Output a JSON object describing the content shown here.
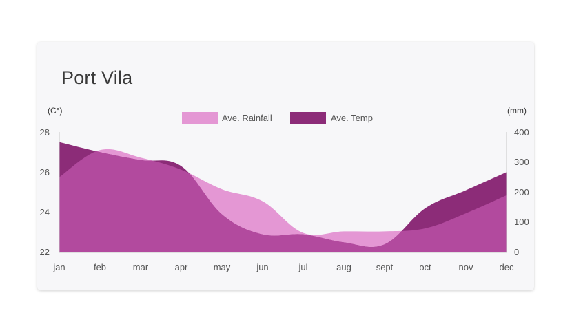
{
  "card_title": "Port Vila",
  "chart_data": {
    "type": "area",
    "title": "Port Vila",
    "categories": [
      "jan",
      "feb",
      "mar",
      "apr",
      "may",
      "jun",
      "jul",
      "aug",
      "sept",
      "oct",
      "nov",
      "dec"
    ],
    "series": [
      {
        "name": "Ave. Rainfall",
        "axis": "right",
        "color": "#e497d4",
        "values": [
          250,
          340,
          315,
          275,
          210,
          170,
          65,
          70,
          70,
          80,
          130,
          190
        ]
      },
      {
        "name": "Ave. Temp",
        "axis": "left",
        "color": "#8c2c78",
        "values": [
          27.5,
          27.0,
          26.6,
          26.3,
          23.9,
          22.9,
          22.9,
          22.5,
          22.4,
          24.2,
          25.1,
          26.0
        ]
      }
    ],
    "left_axis": {
      "unit_label": "(C°)",
      "ylim": [
        22,
        28
      ],
      "ticks": [
        "28",
        "26",
        "24",
        "22"
      ]
    },
    "right_axis": {
      "unit_label": "(mm)",
      "ylim": [
        0,
        400
      ],
      "ticks": [
        "400",
        "300",
        "200",
        "100",
        "0"
      ]
    },
    "legend": {
      "position": "top-center"
    },
    "overlap_color": "#b24a9e",
    "grid": false
  }
}
